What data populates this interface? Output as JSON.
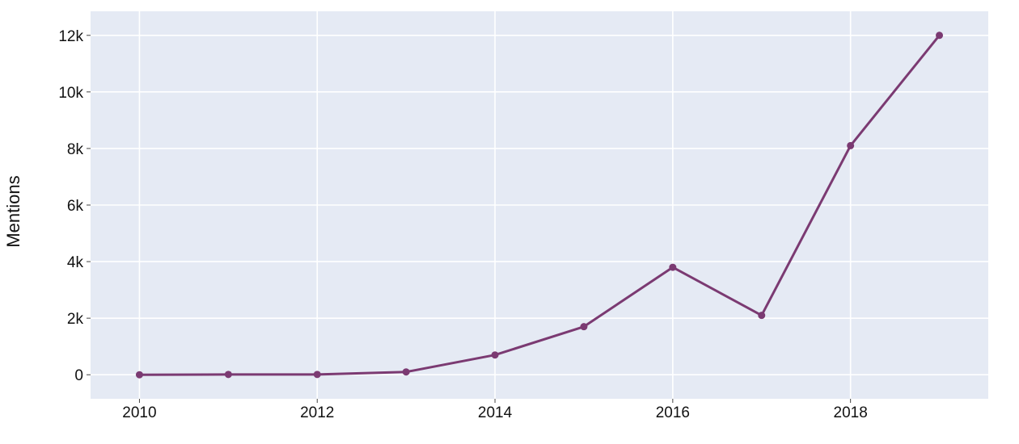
{
  "chart_data": {
    "type": "line",
    "title": "",
    "xlabel": "",
    "ylabel": "Mentions",
    "x": [
      2010,
      2011,
      2012,
      2013,
      2014,
      2015,
      2016,
      2017,
      2018,
      2019
    ],
    "series": [
      {
        "values": [
          0,
          10,
          10,
          100,
          700,
          1700,
          3800,
          2100,
          8100,
          12000
        ]
      }
    ],
    "x_ticks": [
      {
        "value": 2010,
        "label": "2010"
      },
      {
        "value": 2012,
        "label": "2012"
      },
      {
        "value": 2014,
        "label": "2014"
      },
      {
        "value": 2016,
        "label": "2016"
      },
      {
        "value": 2018,
        "label": "2018"
      }
    ],
    "y_ticks": [
      {
        "value": 0,
        "label": "0"
      },
      {
        "value": 2000,
        "label": "2k"
      },
      {
        "value": 4000,
        "label": "4k"
      },
      {
        "value": 6000,
        "label": "6k"
      },
      {
        "value": 8000,
        "label": "8k"
      },
      {
        "value": 10000,
        "label": "10k"
      },
      {
        "value": 12000,
        "label": "12k"
      }
    ],
    "xlim": [
      2009.45,
      2019.55
    ],
    "ylim": [
      -850,
      12850
    ],
    "grid": true,
    "colors": {
      "line": "#7b3a72",
      "plot_background": "#e5eaf4",
      "grid": "#ffffff"
    }
  }
}
